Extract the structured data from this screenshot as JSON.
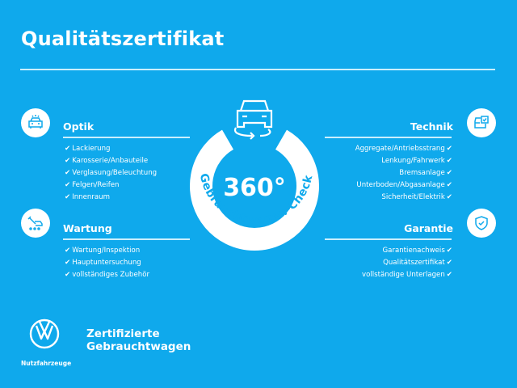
{
  "header": {
    "title": "Qualitätszertifikat"
  },
  "badge": {
    "value": "360°",
    "label": "Gebrauchtwagen-Check"
  },
  "sections": {
    "optik": {
      "title": "Optik",
      "icon": "car-lights-icon",
      "items": [
        "Lackierung",
        "Karosserie/Anbauteile",
        "Verglasung/Beleuchtung",
        "Felgen/Reifen",
        "Innenraum"
      ]
    },
    "wartung": {
      "title": "Wartung",
      "icon": "car-wrench-icon",
      "items": [
        "Wartung/Inspektion",
        "Hauptuntersuchung",
        "vollständiges Zubehör"
      ]
    },
    "technik": {
      "title": "Technik",
      "icon": "car-checklist-icon",
      "items": [
        "Aggregate/Antriebsstrang",
        "Lenkung/Fahrwerk",
        "Bremsanlage",
        "Unterboden/Abgasanlage",
        "Sicherheit/Elektrik"
      ]
    },
    "garantie": {
      "title": "Garantie",
      "icon": "shield-check-icon",
      "items": [
        "Garantienachweis",
        "Qualitätszertifikat",
        "vollständige Unterlagen"
      ]
    }
  },
  "check": "✔",
  "footer": {
    "brand": "Nutzfahrzeuge",
    "line1": "Zertifizierte",
    "line2": "Gebrauchtwagen"
  },
  "colors": {
    "background": "#0fa9ec",
    "foreground": "#ffffff"
  }
}
